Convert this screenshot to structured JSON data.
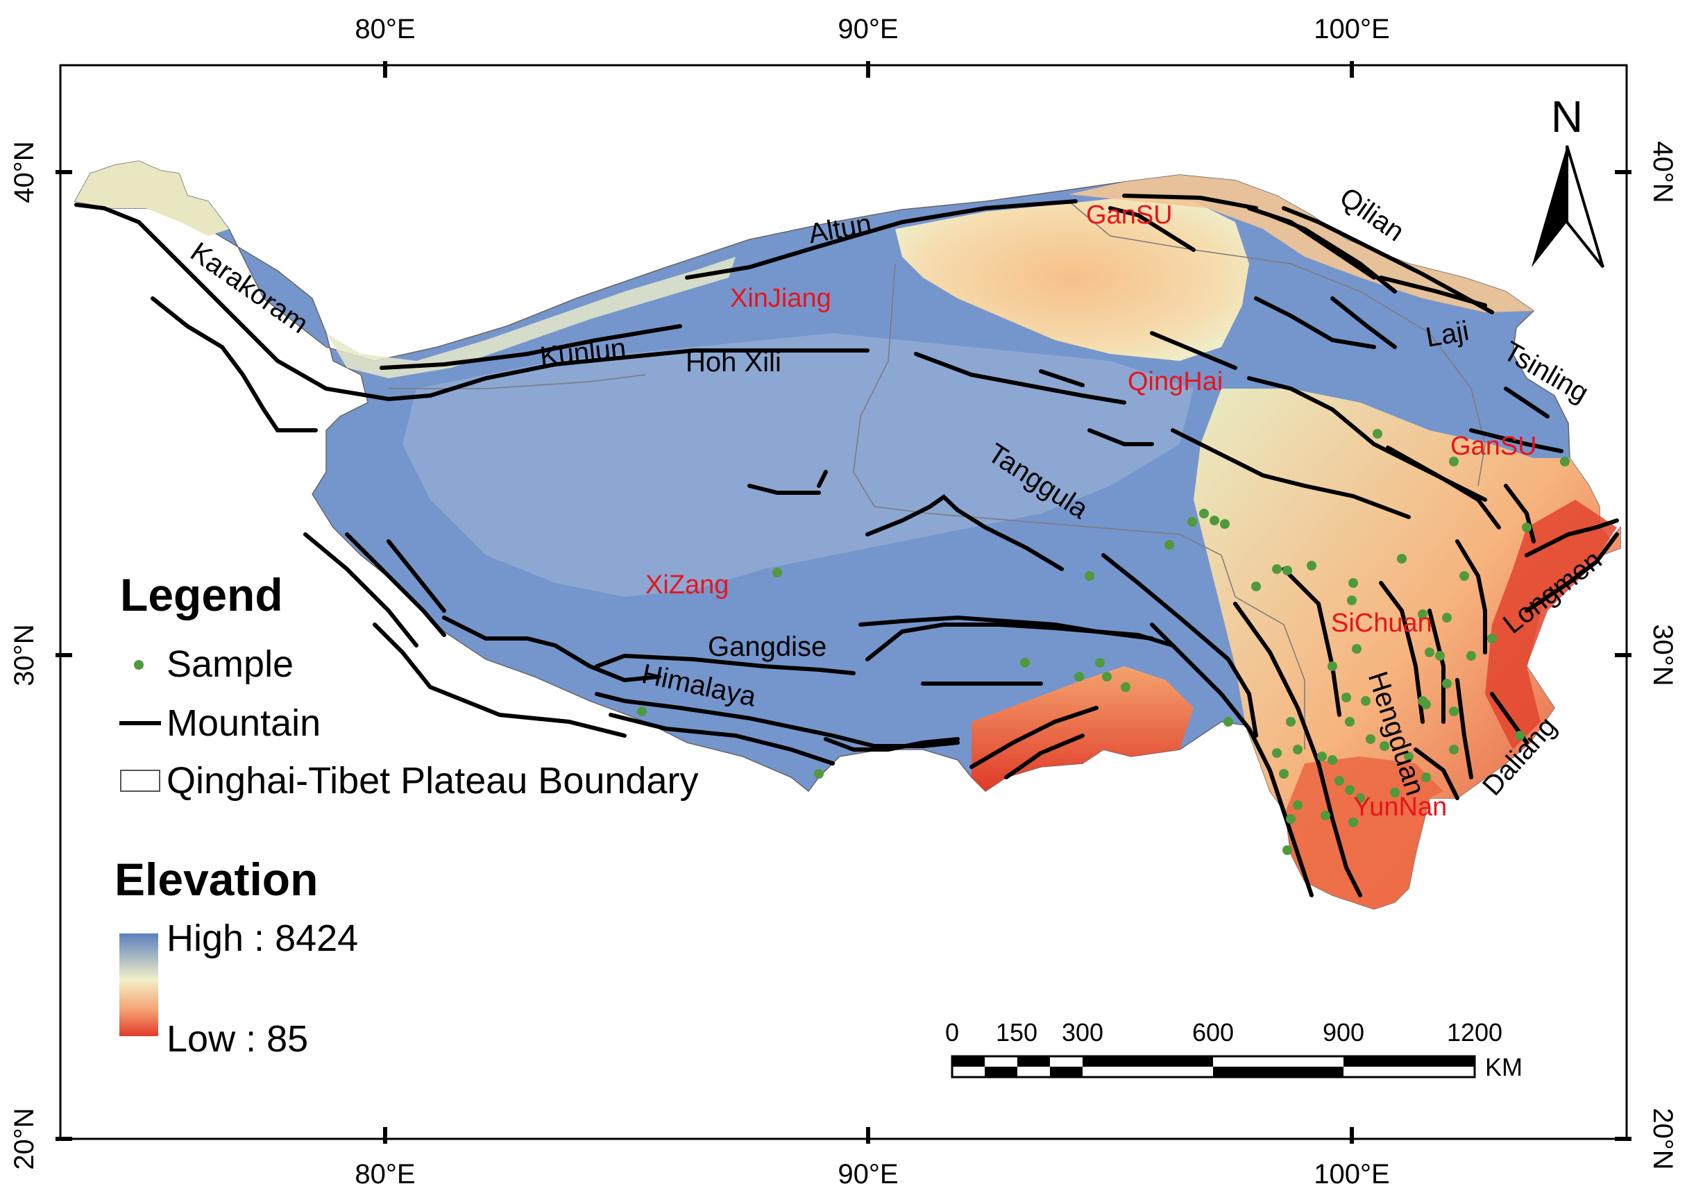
{
  "graticule": {
    "top_lon": [
      "80°E",
      "90°E",
      "100°E"
    ],
    "bottom_lon": [
      "80°E",
      "90°E",
      "100°E"
    ],
    "left_lat": [
      "40°N",
      "30°N",
      "20°N"
    ],
    "right_lat": [
      "40°N",
      "30°N",
      "20°N"
    ]
  },
  "north_arrow": {
    "label": "N"
  },
  "mountains": {
    "altun": "Altun",
    "karakoram": "Karakoram",
    "kunlun": "Kunlun",
    "hoh_xili": "Hoh Xili",
    "tanggula": "Tanggula",
    "gangdise": "Gangdise",
    "himalaya": "Himalaya",
    "qilian": "Qilian",
    "laji": "Laji",
    "tsinling": "Tsinling",
    "longmen": "Longmen",
    "daliang": "Daliang",
    "hengduan": "Hengduan"
  },
  "provinces": {
    "gansu_north": "GanSU",
    "xinjiang": "XinJiang",
    "qinghai": "QingHai",
    "gansu_east": "GanSU",
    "xizang": "XiZang",
    "sichuan": "SiChuan",
    "yunnan": "YunNan"
  },
  "legend": {
    "title": "Legend",
    "sample": "Sample",
    "mountain": "Mountain",
    "boundary": "Qinghai-Tibet Plateau Boundary",
    "elevation_title": "Elevation",
    "high": "High : 8424",
    "low": "Low : 85"
  },
  "scale_bar": {
    "ticks": [
      "0",
      "150",
      "300",
      "600",
      "900",
      "1200"
    ],
    "unit": "KM"
  },
  "colors": {
    "high_elev": "#5b7fbf",
    "mid_elev": "#f2f0c8",
    "low_elev": "#e23b2a",
    "sample": "#4e9a3c",
    "province_label": "#e8141b",
    "mountain_line": "#000000"
  }
}
